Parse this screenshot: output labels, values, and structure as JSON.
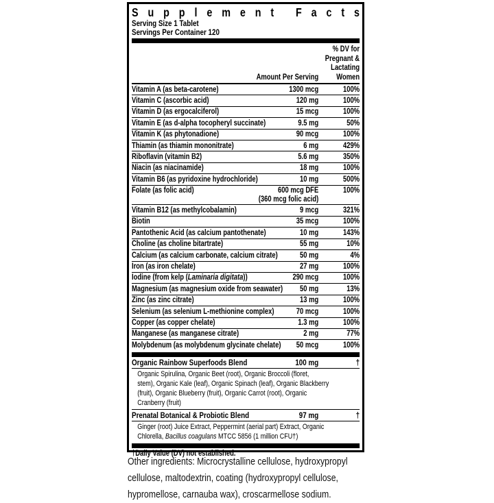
{
  "panel": {
    "title": "Supplement Facts",
    "serving_size": "Serving Size 1 Tablet",
    "servings_per_container": "Servings Per Container 120",
    "amount_header": "Amount Per Serving",
    "dv_header_lines": [
      "% DV for",
      "Pregnant &",
      "Lactating",
      "Women"
    ],
    "rows": [
      {
        "label": "Vitamin A (as beta-carotene)",
        "amount": "1300 mcg",
        "dv": "100%"
      },
      {
        "label": "Vitamin C (ascorbic acid)",
        "amount": "120 mg",
        "dv": "100%"
      },
      {
        "label": "Vitamin D (as ergocalciferol)",
        "amount": "15 mcg",
        "dv": "100%"
      },
      {
        "label": "Vitamin E (as d-alpha tocopheryl succinate)",
        "amount": "9.5 mg",
        "dv": "50%"
      },
      {
        "label": "Vitamin K (as phytonadione)",
        "amount": "90 mcg",
        "dv": "100%"
      },
      {
        "label": "Thiamin (as thiamin mononitrate)",
        "amount": "6 mg",
        "dv": "429%"
      },
      {
        "label": "Riboflavin (vitamin B2)",
        "amount": "5.6 mg",
        "dv": "350%"
      },
      {
        "label": "Niacin (as niacinamide)",
        "amount": "18 mg",
        "dv": "100%"
      },
      {
        "label": "Vitamin B6 (as pyridoxine hydrochloride)",
        "amount": "10 mg",
        "dv": "500%"
      },
      {
        "label": "Folate (as folic acid)",
        "amount_lines": [
          "600 mcg DFE",
          "(360 mcg folic acid)"
        ],
        "dv": "100%"
      },
      {
        "label": "Vitamin B12 (as methylcobalamin)",
        "amount": "9 mcg",
        "dv": "321%"
      },
      {
        "label": "Biotin",
        "amount": "35 mcg",
        "dv": "100%"
      },
      {
        "label": "Pantothenic Acid (as calcium pantothenate)",
        "amount": "10 mg",
        "dv": "143%"
      },
      {
        "label": "Choline (as choline bitartrate)",
        "amount": "55 mg",
        "dv": "10%"
      },
      {
        "label": "Calcium (as calcium carbonate, calcium citrate)",
        "amount": "50 mg",
        "dv": "4%"
      },
      {
        "label": "Iron (as iron chelate)",
        "amount": "27 mg",
        "dv": "100%"
      },
      {
        "label_parts": [
          {
            "t": "Iodine (from kelp ("
          },
          {
            "t": "Laminaria digitata",
            "i": true
          },
          {
            "t": "))"
          }
        ],
        "amount": "290 mcg",
        "dv": "100%"
      },
      {
        "label": "Magnesium (as magnesium oxide from seawater)",
        "amount": "50 mg",
        "dv": "13%"
      },
      {
        "label": "Zinc (as zinc citrate)",
        "amount": "13 mg",
        "dv": "100%"
      },
      {
        "label": "Selenium (as selenium L-methionine complex)",
        "amount": "70 mcg",
        "dv": "100%"
      },
      {
        "label": "Copper (as copper chelate)",
        "amount": "1.3 mg",
        "dv": "100%"
      },
      {
        "label": "Manganese (as manganese citrate)",
        "amount": "2 mg",
        "dv": "77%"
      },
      {
        "label": "Molybdenum (as molybdenum glycinate chelate)",
        "amount": "50 mcg",
        "dv": "100%"
      }
    ],
    "blends": [
      {
        "name": "Organic Rainbow Superfoods Blend",
        "amount": "100 mg",
        "dv": "†",
        "desc_lines": [
          "Organic Spirulina, Organic Beet (root), Organic Broccoli (floret,",
          "stem), Organic Kale (leaf), Organic Spinach (leaf), Organic Blackberry",
          "(fruit), Organic Blueberry (fruit), Organic Carrot (root), Organic",
          "Cranberry (fruit)"
        ]
      },
      {
        "name": "Prenatal Botanical & Probiotic Blend",
        "amount": "97 mg",
        "dv": "†",
        "desc_lines": [
          "Ginger (root) Juice Extract, Peppermint (aerial part) Extract, Organic",
          [
            {
              "t": "Chlorella, "
            },
            {
              "t": "Bacillus coagulans",
              "i": true
            },
            {
              "t": " MTCC 5856 (1 million CFU†)"
            }
          ]
        ]
      }
    ],
    "footnote": "†Daily Value (DV) not established."
  },
  "footer": {
    "lines": [
      "Other ingredients: Microcrystalline cellulose, hydroxypropyl",
      "cellulose, maltodextrin, coating (hydroxypropyl cellulose,",
      "hypromellose, carnauba wax), croscarmellose sodium."
    ]
  }
}
